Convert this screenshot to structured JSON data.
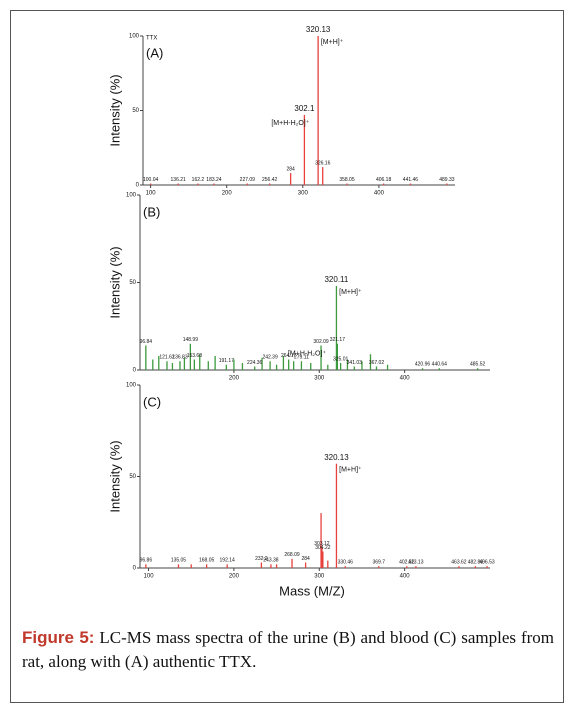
{
  "chart_data": [
    {
      "type": "bar",
      "panel_label": "(A)",
      "sample_label": "TTX",
      "ylabel": "Intensity (%)",
      "color": "#e8413c",
      "x": [
        320.13,
        302.1,
        100.04,
        136.21,
        162.2,
        183.24,
        227.09,
        256.42,
        284.0,
        326.16,
        358.05,
        406.18,
        441.46,
        489.33
      ],
      "values": [
        100,
        47,
        1,
        1,
        1,
        1,
        1,
        1,
        8,
        12,
        1,
        1,
        1,
        1
      ],
      "ion_labels": [
        "[M+H]⁺",
        "[M+H-H₂O]⁺",
        null,
        null,
        null,
        null,
        null,
        null,
        null,
        null,
        null,
        null,
        null,
        null
      ],
      "ylim": [
        0,
        100
      ],
      "yticks": [
        0,
        50,
        100
      ],
      "xlim": [
        90,
        500
      ],
      "xticks": [
        100,
        200,
        300,
        400
      ]
    },
    {
      "type": "bar",
      "panel_label": "(B)",
      "ylabel": "Intensity (%)",
      "color": "#3c9a3c",
      "x": [
        320.11,
        302.09,
        96.84,
        121.62,
        136.83,
        148.99,
        153.68,
        191.17,
        224.36,
        242.39,
        264.17,
        279.11,
        321.17,
        325.01,
        341.03,
        367.02,
        420.96,
        440.64,
        485.52
      ],
      "values": [
        48,
        14,
        14,
        5,
        5,
        15,
        6,
        3,
        2,
        5,
        6,
        5,
        15,
        4,
        2,
        2,
        1,
        1,
        1
      ],
      "ion_labels": [
        "[M+H]⁺",
        "[M+H-H₂O]⁺",
        null,
        null,
        null,
        null,
        null,
        null,
        null,
        null,
        null,
        null,
        null,
        null,
        null,
        null,
        null,
        null,
        null
      ],
      "minor_x": [
        105,
        112,
        128,
        142,
        160,
        170,
        178,
        200,
        210,
        233,
        250,
        258,
        270,
        290,
        310,
        333,
        350,
        360,
        380
      ],
      "minor_values": [
        6,
        8,
        4,
        7,
        9,
        5,
        8,
        6,
        4,
        7,
        3,
        8,
        5,
        4,
        3,
        6,
        5,
        9,
        3
      ],
      "ylim": [
        0,
        100
      ],
      "yticks": [
        0,
        50,
        100
      ],
      "xlim": [
        90,
        500
      ],
      "xticks": [
        200,
        300,
        400
      ]
    },
    {
      "type": "bar",
      "panel_label": "(C)",
      "ylabel": "Intensity (%)",
      "color": "#e8413c",
      "x": [
        320.13,
        303.12,
        304.22,
        96.86,
        135.05,
        168.05,
        192.14,
        232.2,
        243.38,
        268.09,
        284.0,
        330.46,
        369.7,
        402.52,
        413.13,
        463.62,
        482.86,
        496.53
      ],
      "values": [
        57,
        11,
        9,
        2,
        2,
        2,
        2,
        3,
        2,
        5,
        3,
        1,
        1,
        1,
        1,
        1,
        1,
        1
      ],
      "ion_labels": [
        "[M+H]⁺",
        null,
        null,
        null,
        null,
        null,
        null,
        null,
        null,
        null,
        null,
        null,
        null,
        null,
        null,
        null,
        null,
        null
      ],
      "minor_x": [
        302.1,
        310,
        250,
        150
      ],
      "minor_values": [
        30,
        4,
        2,
        2
      ],
      "ylim": [
        0,
        100
      ],
      "yticks": [
        0,
        50,
        100
      ],
      "xlim": [
        90,
        500
      ],
      "xticks": [
        100,
        200,
        300,
        400
      ]
    }
  ],
  "xlabel": "Mass (M/Z)",
  "caption": {
    "label": "Figure 5:",
    "text": "LC-MS mass spectra of the urine (B) and blood (C) samples from rat, along with (A) authentic TTX."
  }
}
